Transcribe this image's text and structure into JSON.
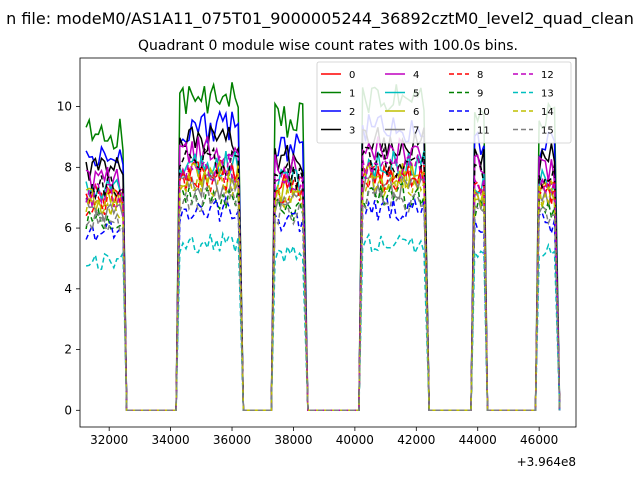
{
  "suptitle": "n file: modeM0/AS1A11_075T01_9000005244_36892cztM0_level2_quad_clean",
  "chart_data": {
    "type": "line",
    "title": "Quadrant 0 module wise count rates with 100.0s bins.",
    "xlabel": "",
    "ylabel": "",
    "x_offset_label": "+3.964e8",
    "xlim": [
      31050,
      47200
    ],
    "ylim": [
      -0.55,
      11.6
    ],
    "xticks": [
      32000,
      34000,
      36000,
      38000,
      40000,
      42000,
      44000,
      46000
    ],
    "yticks": [
      0,
      2,
      4,
      6,
      8,
      10
    ],
    "grid": false,
    "legend_position": "top-right",
    "legend_columns": 4,
    "gti": [
      [
        31250,
        32450
      ],
      [
        34300,
        36250
      ],
      [
        37400,
        38350
      ],
      [
        40250,
        42300
      ],
      [
        43900,
        44200
      ],
      [
        46000,
        46550
      ]
    ],
    "series": [
      {
        "name": "0",
        "color": "#ff0000",
        "linestyle": "solid",
        "level": 7.0
      },
      {
        "name": "1",
        "color": "#008000",
        "linestyle": "solid",
        "level": 9.1
      },
      {
        "name": "2",
        "color": "#0000ff",
        "linestyle": "solid",
        "level": 8.3
      },
      {
        "name": "3",
        "color": "#000000",
        "linestyle": "solid",
        "level": 7.9
      },
      {
        "name": "4",
        "color": "#bf00bf",
        "linestyle": "solid",
        "level": 7.6
      },
      {
        "name": "5",
        "color": "#00bfbf",
        "linestyle": "solid",
        "level": 7.2
      },
      {
        "name": "6",
        "color": "#bfbf00",
        "linestyle": "solid",
        "level": 6.9
      },
      {
        "name": "7",
        "color": "#808080",
        "linestyle": "solid",
        "level": 6.6
      },
      {
        "name": "8",
        "color": "#ff0000",
        "linestyle": "dashed",
        "level": 6.8
      },
      {
        "name": "9",
        "color": "#008000",
        "linestyle": "dashed",
        "level": 6.3
      },
      {
        "name": "10",
        "color": "#0000ff",
        "linestyle": "dashed",
        "level": 5.9
      },
      {
        "name": "11",
        "color": "#000000",
        "linestyle": "dashed",
        "level": 7.3
      },
      {
        "name": "12",
        "color": "#bf00bf",
        "linestyle": "dashed",
        "level": 7.1
      },
      {
        "name": "13",
        "color": "#00bfbf",
        "linestyle": "dashed",
        "level": 4.9
      },
      {
        "name": "14",
        "color": "#bfbf00",
        "linestyle": "dashed",
        "level": 6.7
      },
      {
        "name": "15",
        "color": "#808080",
        "linestyle": "dashed",
        "level": 6.2
      }
    ]
  }
}
